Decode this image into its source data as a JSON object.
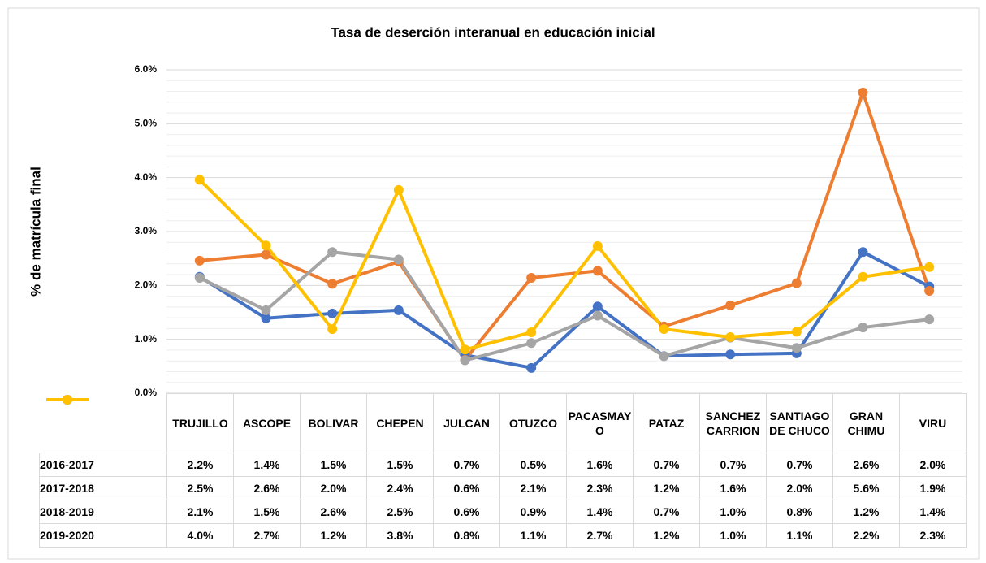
{
  "chart_data": {
    "type": "line",
    "title": "Tasa de deserción interanual en educación inicial",
    "ylabel": "% de matrícula final",
    "categories": [
      "TRUJILLO",
      "ASCOPE",
      "BOLIVAR",
      "CHEPEN",
      "JULCAN",
      "OTUZCO",
      "PACASMAYO",
      "PATAZ",
      "SANCHEZ CARRION",
      "SANTIAGO DE CHUCO",
      "GRAN CHIMU",
      "VIRU"
    ],
    "series": [
      {
        "name": "2016-2017",
        "color": "#4472c4",
        "values": [
          2.16,
          1.39,
          1.48,
          1.54,
          0.71,
          0.47,
          1.61,
          0.69,
          0.72,
          0.74,
          2.62,
          1.98
        ],
        "value_labels": [
          "2.2%",
          "1.4%",
          "1.5%",
          "1.5%",
          "0.7%",
          "0.5%",
          "1.6%",
          "0.7%",
          "0.7%",
          "0.7%",
          "2.6%",
          "2.0%"
        ]
      },
      {
        "name": "2017-2018",
        "color": "#ed7d31",
        "values": [
          2.46,
          2.57,
          2.03,
          2.44,
          0.62,
          2.14,
          2.27,
          1.24,
          1.63,
          2.04,
          5.58,
          1.9
        ],
        "value_labels": [
          "2.5%",
          "2.6%",
          "2.0%",
          "2.4%",
          "0.6%",
          "2.1%",
          "2.3%",
          "1.2%",
          "1.6%",
          "2.0%",
          "5.6%",
          "1.9%"
        ]
      },
      {
        "name": "2018-2019",
        "color": "#a5a5a5",
        "values": [
          2.14,
          1.54,
          2.62,
          2.48,
          0.61,
          0.93,
          1.44,
          0.69,
          1.03,
          0.84,
          1.22,
          1.37
        ],
        "value_labels": [
          "2.1%",
          "1.5%",
          "2.6%",
          "2.5%",
          "0.6%",
          "0.9%",
          "1.4%",
          "0.7%",
          "1.0%",
          "0.8%",
          "1.2%",
          "1.4%"
        ]
      },
      {
        "name": "2019-2020",
        "color": "#ffc000",
        "values": [
          3.96,
          2.74,
          1.19,
          3.77,
          0.81,
          1.13,
          2.73,
          1.19,
          1.04,
          1.14,
          2.16,
          2.34
        ],
        "value_labels": [
          "4.0%",
          "2.7%",
          "1.2%",
          "3.8%",
          "0.8%",
          "1.1%",
          "2.7%",
          "1.2%",
          "1.0%",
          "1.1%",
          "2.2%",
          "2.3%"
        ]
      }
    ],
    "ylim": [
      0,
      6
    ],
    "yticks": [
      {
        "value": 0,
        "label": "0.0%"
      },
      {
        "value": 1,
        "label": "1.0%"
      },
      {
        "value": 2,
        "label": "2.0%"
      },
      {
        "value": 3,
        "label": "3.0%"
      },
      {
        "value": 4,
        "label": "4.0%"
      },
      {
        "value": 5,
        "label": "5.0%"
      },
      {
        "value": 6,
        "label": "6.0%"
      }
    ],
    "grid": true
  }
}
